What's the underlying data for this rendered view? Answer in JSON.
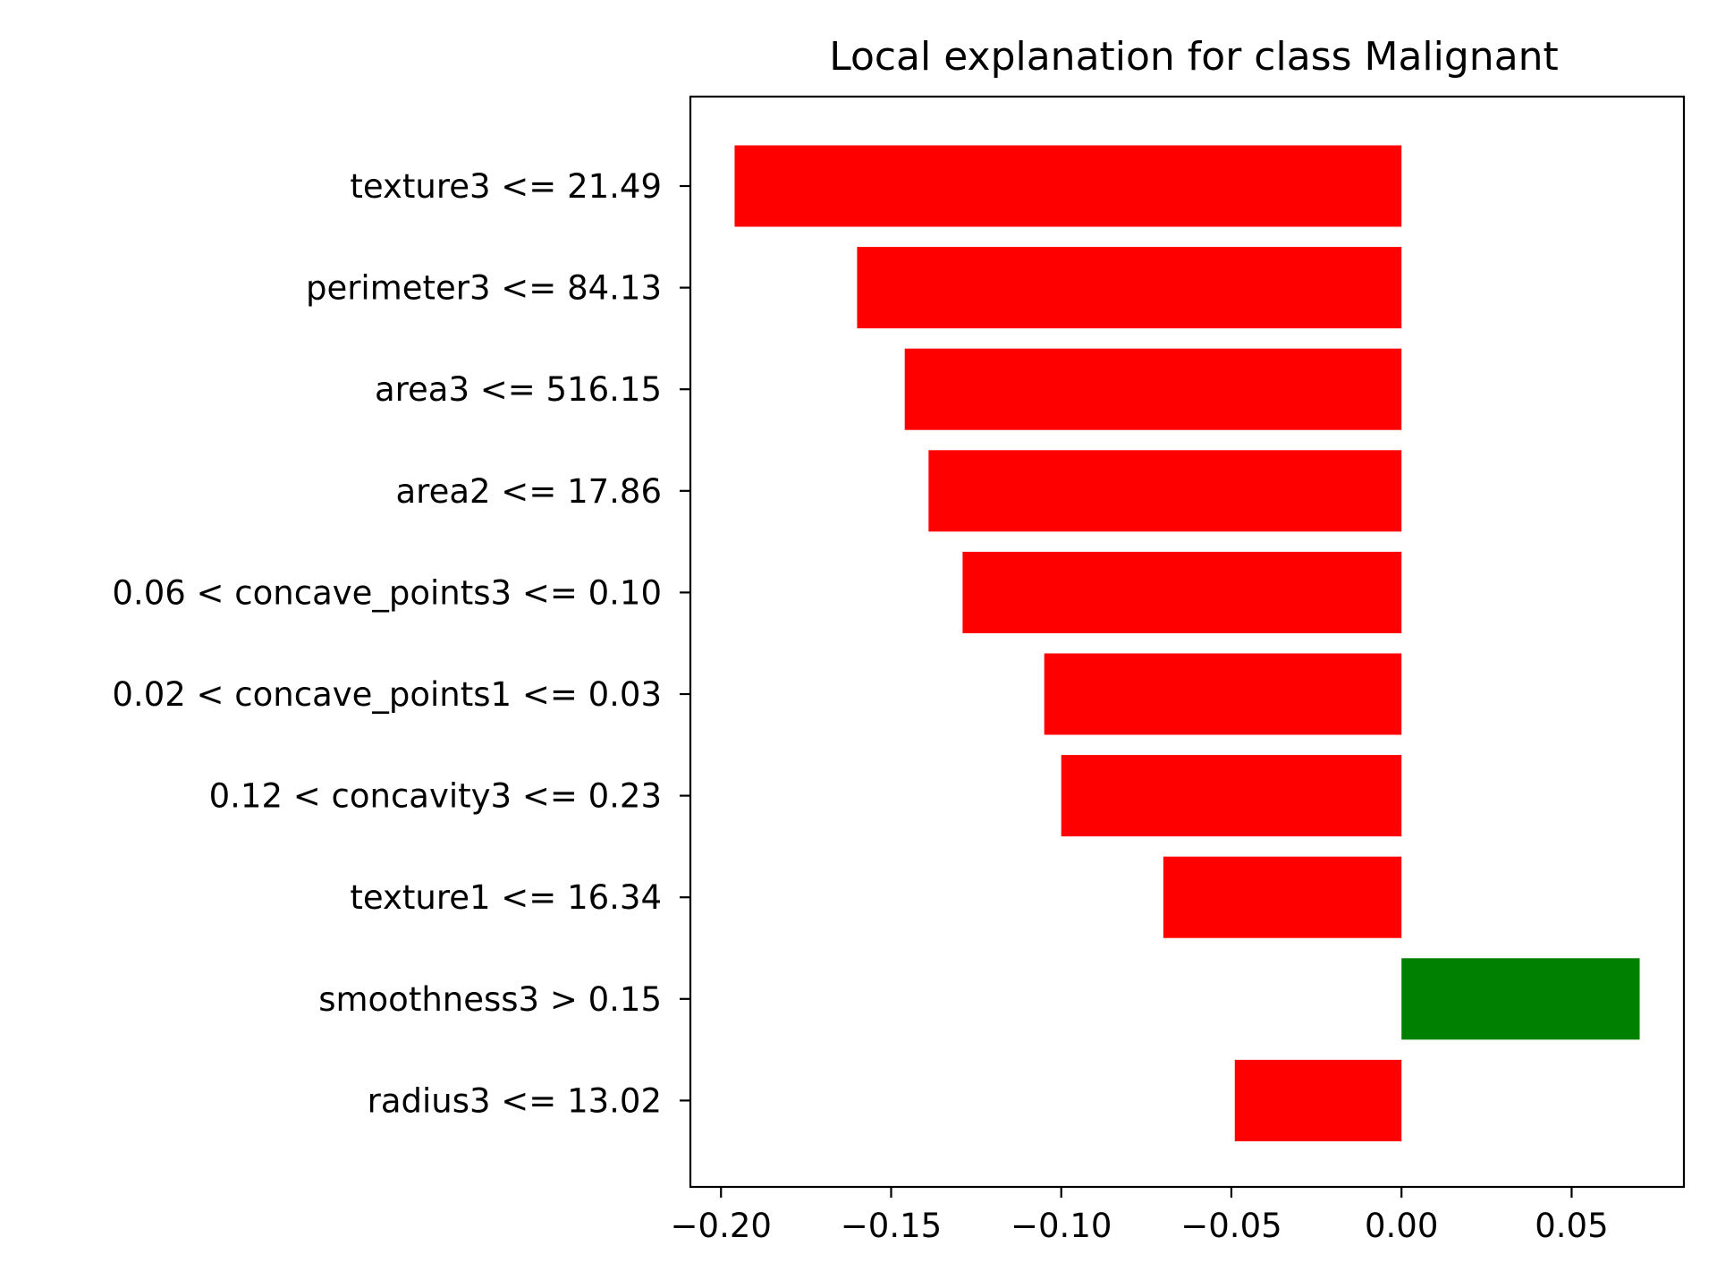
{
  "chart_data": {
    "type": "bar",
    "orientation": "horizontal",
    "title": "Local explanation for class Malignant",
    "xlabel": "",
    "ylabel": "",
    "xlim": [
      -0.209,
      0.083
    ],
    "xticks": [
      -0.2,
      -0.15,
      -0.1,
      -0.05,
      0.0,
      0.05
    ],
    "xtick_labels": [
      "−0.20",
      "−0.15",
      "−0.10",
      "−0.05",
      "0.00",
      "0.05"
    ],
    "categories": [
      "texture3 <= 21.49",
      "perimeter3 <= 84.13",
      "area3 <= 516.15",
      "area2 <= 17.86",
      "0.06 < concave_points3 <= 0.10",
      "0.02 < concave_points1 <= 0.03",
      "0.12 < concavity3 <= 0.23",
      "texture1 <= 16.34",
      "smoothness3 > 0.15",
      "radius3 <= 13.02"
    ],
    "values": [
      -0.196,
      -0.16,
      -0.146,
      -0.139,
      -0.129,
      -0.105,
      -0.1,
      -0.07,
      0.07,
      -0.049
    ],
    "colors": {
      "negative": "#ff0000",
      "positive": "#008000"
    },
    "grid": false,
    "legend": "none"
  }
}
